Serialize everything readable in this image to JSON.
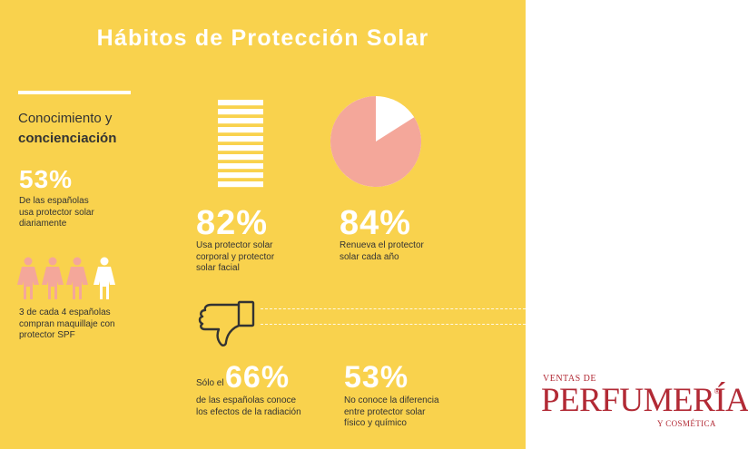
{
  "title": "Hábitos de Protección Solar",
  "heading": {
    "line1": "Conocimiento y",
    "line2": "concienciación"
  },
  "stats": {
    "daily": {
      "value": "53%",
      "line1": "De las españolas",
      "line2": "usa protector solar",
      "line3": "diariamente"
    },
    "makeup": {
      "line1": "3 de cada 4 españolas",
      "line2": "compran maquillaje con",
      "line3": "protector SPF",
      "fraction": 0.75
    },
    "body_face": {
      "value": "82%",
      "line1": "Usa protector solar",
      "line2": "corporal y protector",
      "line3": "solar facial",
      "fraction": 0.82
    },
    "renew": {
      "value": "84%",
      "line1": "Renueva el protector",
      "line2": "solar cada año",
      "fraction": 0.84
    },
    "radiation": {
      "prefix": "Sólo el",
      "value": "66%",
      "line1": "de las españolas conoce",
      "line2": "los efectos de la radiación"
    },
    "difference": {
      "value": "53%",
      "line1": "No conoce la diferencia",
      "line2": "entre protector solar",
      "line3": "físico y químico"
    }
  },
  "colors": {
    "background": "#f9d24d",
    "accent": "#f4a79a",
    "text": "#333333",
    "white": "#ffffff",
    "brand": "#b22a35"
  },
  "icons": {
    "woman": "woman-icon",
    "thumb": "thumbs-down-icon",
    "bars": "bar-stack-icon",
    "pie": "pie-chart-icon"
  },
  "logo": {
    "top": "VENTAS DE",
    "main": "PERFUMERÍA",
    "reg": "®",
    "sub": "Y COSMÉTICA"
  }
}
